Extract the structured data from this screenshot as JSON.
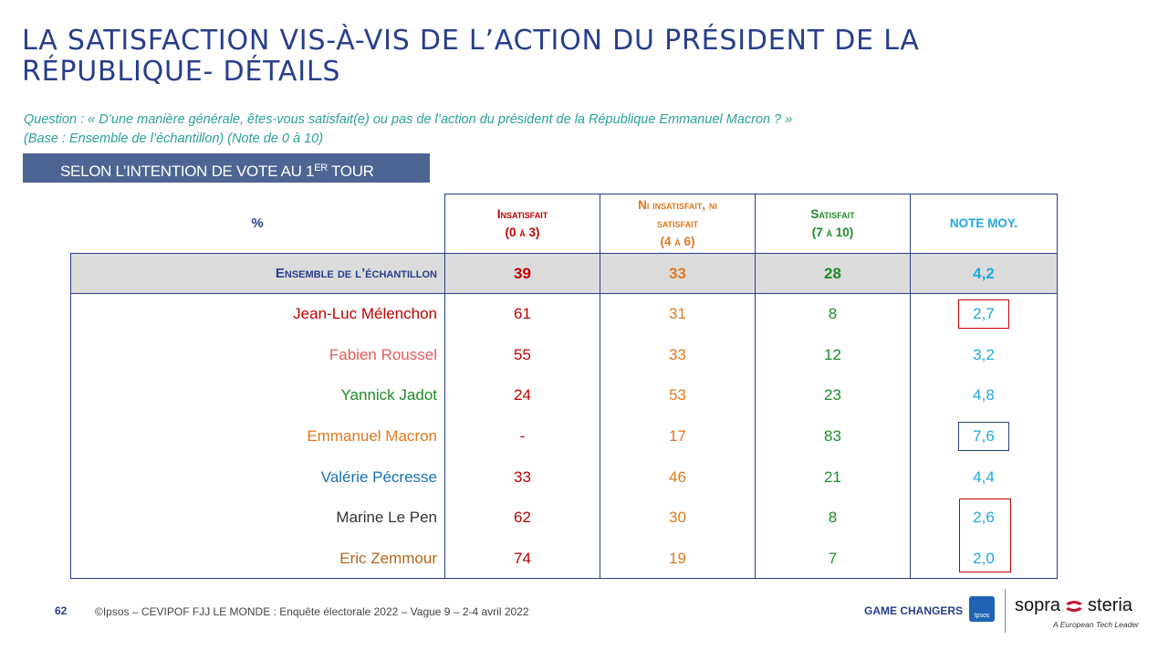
{
  "title": "LA SATISFACTION VIS-À-VIS DE L’ACTION DU PRÉSIDENT DE LA RÉPUBLIQUE- DÉTAILS",
  "question_line1": "Question : « D’une manière générale, êtes-vous satisfait(e) ou pas de l’action du président de la République Emmanuel Macron ? »",
  "question_line2": "(Base : Ensemble de l’échantillon) (Note de 0 à 10)",
  "banner": {
    "text": "SELON L’INTENTION DE VOTE AU 1",
    "sup": "ER",
    "tail": " TOUR"
  },
  "table": {
    "corner": "%",
    "headers": [
      {
        "line1": "Insatisfait",
        "line2": "(0 à 3)",
        "color": "#c00000"
      },
      {
        "line1": "Ni insatisfait, ni",
        "line1b": "satisfait",
        "line2": "(4 à 6)",
        "color": "#e0781e"
      },
      {
        "line1": "Satisfait",
        "line2": "(7 à 10)",
        "color": "#1e8c28"
      },
      {
        "line1": "NOTE MOY.",
        "color": "#1fa9e1"
      }
    ],
    "total": {
      "label": "Ensemble de l’échantillon",
      "values": [
        "39",
        "33",
        "28",
        "4,2"
      ]
    },
    "rows": [
      {
        "label": "Jean-Luc Mélenchon",
        "color": "#c00000",
        "values": [
          "61",
          "31",
          "8",
          "2,7"
        ]
      },
      {
        "label": "Fabien Roussel",
        "color": "#e85a5a",
        "values": [
          "55",
          "33",
          "12",
          "3,2"
        ]
      },
      {
        "label": "Yannick Jadot",
        "color": "#1e8c28",
        "values": [
          "24",
          "53",
          "23",
          "4,8"
        ]
      },
      {
        "label": "Emmanuel Macron",
        "color": "#e0781e",
        "values": [
          "-",
          "17",
          "83",
          "7,6"
        ]
      },
      {
        "label": "Valérie Pécresse",
        "color": "#1a6fb8",
        "values": [
          "33",
          "46",
          "21",
          "4,4"
        ]
      },
      {
        "label": "Marine Le Pen",
        "color": "#333333",
        "values": [
          "62",
          "30",
          "8",
          "2,6"
        ]
      },
      {
        "label": "Eric Zemmour",
        "color": "#b5651d",
        "values": [
          "74",
          "19",
          "7",
          "2,0"
        ]
      }
    ]
  },
  "footer": {
    "page": "62",
    "source": "©Ipsos – CEVIPOF FJJ LE MONDE : Enquête électorale 2022 – Vague 9 – 2-4 avril 2022",
    "game_changers": "GAME CHANGERS",
    "ipsos": "Ipsos",
    "sopra": "sopra",
    "steria": "steria",
    "tagline": "A European Tech Leader"
  }
}
